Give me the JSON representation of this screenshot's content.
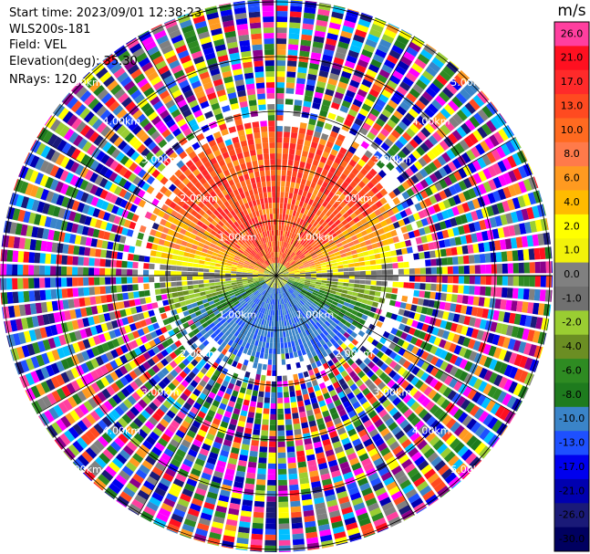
{
  "info": {
    "start_time": "Start time: 2023/09/01 12:38:23",
    "instrument": "WLS200s-181",
    "field": "Field: VEL",
    "elevation": "Elevation(deg): 35.30",
    "nrays": "NRays: 120"
  },
  "colorbar": {
    "unit": "m/s",
    "labels": [
      "26.0",
      "21.0",
      "17.0",
      "13.0",
      "10.0",
      "8.0",
      "6.0",
      "4.0",
      "2.0",
      "1.0",
      "0.0",
      "-1.0",
      "-2.0",
      "-4.0",
      "-6.0",
      "-8.0",
      "-10.0",
      "-13.0",
      "-17.0",
      "-21.0",
      "-26.0",
      "-30.0"
    ],
    "colors": [
      "#ff3f9f",
      "#ff1020",
      "#ff2a2a",
      "#ff4a20",
      "#ff6a20",
      "#ff7a4a",
      "#ff9a20",
      "#ffbb00",
      "#ffff00",
      "#f2f20a",
      "#808080",
      "#707070",
      "#9acd32",
      "#6b8e23",
      "#2e8b22",
      "#1e7b1e",
      "#3a84c8",
      "#1e50ff",
      "#0000ee",
      "#0000b0",
      "#1a1a78",
      "#000060"
    ]
  },
  "plot": {
    "range_rings": [
      {
        "label": "1.00km"
      },
      {
        "label": "2.00km"
      },
      {
        "label": "3.00km"
      },
      {
        "label": "4.00km"
      },
      {
        "label": "5.00km"
      }
    ],
    "nrays": 120,
    "noise_colors": [
      "#ff3f9f",
      "#ff1020",
      "#ff4a20",
      "#ff9a20",
      "#ffff00",
      "#9acd32",
      "#2e8b22",
      "#1e7b1e",
      "#3a84c8",
      "#1e50ff",
      "#0000ee",
      "#0000b0",
      "#1a1a78",
      "#ff00ff",
      "#8b008b",
      "#00bfff",
      "#808080"
    ]
  }
}
